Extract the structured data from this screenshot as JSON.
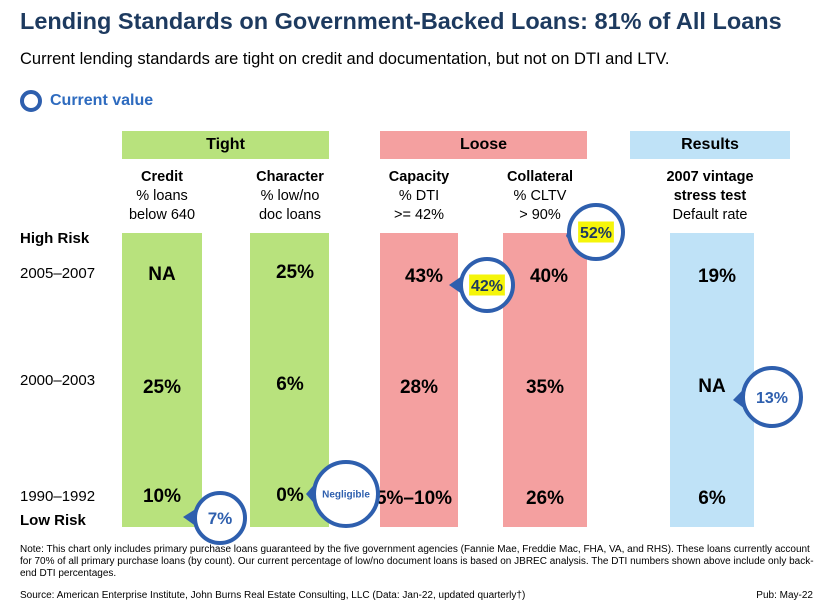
{
  "title": "Lending Standards on Government-Backed Loans: 81% of All Loans",
  "subtitle": "Current lending standards are tight on credit and documentation, but not on DTI and LTV.",
  "legend": {
    "label": "Current value",
    "ring_color": "#2e5fae"
  },
  "groups": {
    "tight": "Tight",
    "loose": "Loose",
    "results": "Results"
  },
  "columns": [
    {
      "title": "Credit",
      "line2": "% loans",
      "line3": "below 640"
    },
    {
      "title": "Character",
      "line2": "% low/no",
      "line3": "doc loans"
    },
    {
      "title": "Capacity",
      "line2": "% DTI",
      "line3": ">= 42%"
    },
    {
      "title": "Collateral",
      "line2": "% CLTV",
      "line3": "> 90%"
    },
    {
      "title": "2007 vintage",
      "line2": "stress test",
      "line3": "Default rate"
    }
  ],
  "risk_labels": {
    "high": "High Risk",
    "low": "Low Risk"
  },
  "chart_data": {
    "type": "table",
    "rows": [
      "2005–2007",
      "2000–2003",
      "1990–1992"
    ],
    "columns": [
      "Credit",
      "Character",
      "Capacity",
      "Collateral",
      "2007 vintage stress test"
    ],
    "cells": [
      [
        "NA",
        "25%",
        "43%",
        "40%",
        "19%"
      ],
      [
        "25%",
        "6%",
        "28%",
        "35%",
        "NA"
      ],
      [
        "10%",
        "0%",
        "5%–10%",
        "26%",
        "6%"
      ]
    ],
    "current_values": [
      {
        "column": "Credit",
        "label": "7%"
      },
      {
        "column": "Character",
        "label": "Negligible"
      },
      {
        "column": "Capacity",
        "label": "42%",
        "highlight": true
      },
      {
        "column": "Collateral",
        "label": "52%",
        "highlight": true
      },
      {
        "column": "2007 vintage stress test",
        "label": "13%"
      }
    ],
    "colors": {
      "tight": "#b8e27d",
      "loose": "#f4a0a0",
      "results": "#bfe2f7",
      "callout": "#2e5fae",
      "highlight": "#f5f50a"
    }
  },
  "note": "Note: This chart only includes primary purchase loans guaranteed by the five government agencies (Fannie Mae, Freddie Mac, FHA, VA, and RHS). These loans currently account for 70% of all primary purchase loans (by count). Our current percentage of low/no document loans is based on JBREC analysis. The DTI numbers shown above include only back-end DTI percentages.",
  "source": "Source: American Enterprise Institute, John Burns Real Estate Consulting, LLC (Data: Jan-22, updated quarterly†)",
  "pub": "Pub: May-22"
}
